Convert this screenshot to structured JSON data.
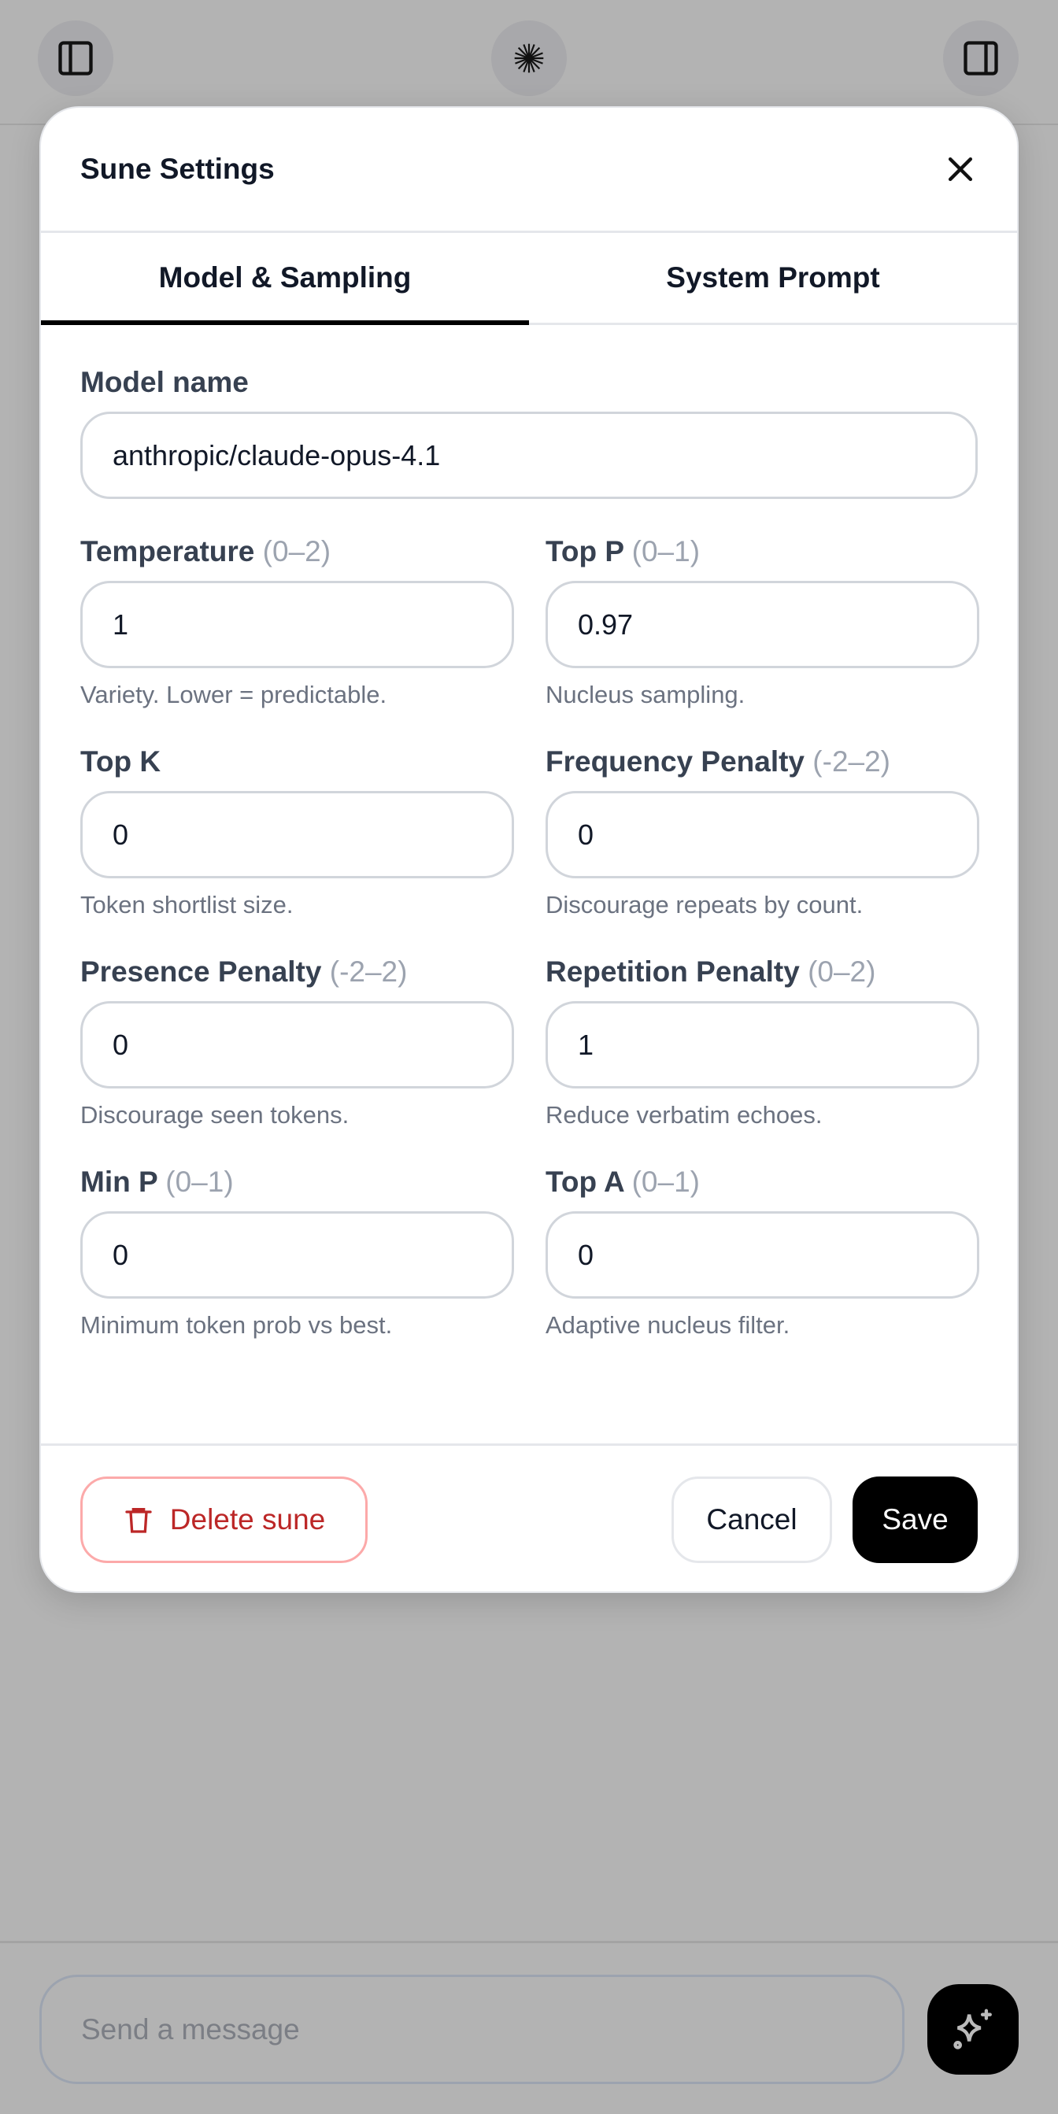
{
  "topbar": {
    "left_icon": "sidebar-left-icon",
    "center_icon": "starburst-icon",
    "right_icon": "sidebar-right-icon"
  },
  "modal": {
    "title": "Sune Settings",
    "close_icon": "close-icon",
    "tabs": [
      {
        "label": "Model & Sampling",
        "active": true
      },
      {
        "label": "System Prompt",
        "active": false
      }
    ],
    "model_name": {
      "label": "Model name",
      "value": "anthropic/claude-opus-4.1"
    },
    "fields": [
      {
        "label": "Temperature",
        "range": "(0–2)",
        "value": "1",
        "help": "Variety. Lower = predictable."
      },
      {
        "label": "Top P",
        "range": "(0–1)",
        "value": "0.97",
        "help": "Nucleus sampling."
      },
      {
        "label": "Top K",
        "range": "",
        "value": "0",
        "help": "Token shortlist size."
      },
      {
        "label": "Frequency Penalty",
        "range": "(-2–2)",
        "value": "0",
        "help": "Discourage repeats by count."
      },
      {
        "label": "Presence Penalty",
        "range": "(-2–2)",
        "value": "0",
        "help": "Discourage seen tokens."
      },
      {
        "label": "Repetition Penalty",
        "range": "(0–2)",
        "value": "1",
        "help": "Reduce verbatim echoes."
      },
      {
        "label": "Min P",
        "range": "(0–1)",
        "value": "0",
        "help": "Minimum token prob vs best."
      },
      {
        "label": "Top A",
        "range": "(0–1)",
        "value": "0",
        "help": "Adaptive nucleus filter."
      }
    ],
    "footer": {
      "delete_label": "Delete sune",
      "cancel_label": "Cancel",
      "save_label": "Save"
    },
    "colors": {
      "danger": "#b91c1c",
      "primary": "#000000"
    }
  },
  "composer": {
    "placeholder": "Send a message",
    "send_icon": "sparkles-icon"
  }
}
